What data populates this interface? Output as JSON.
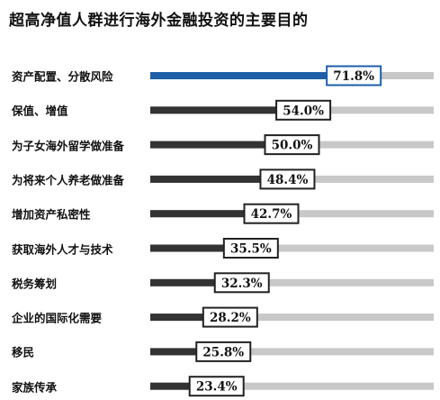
{
  "title": "超高净值人群进行海外金融投资的主要目的",
  "colors": {
    "highlight_bar": "#1f5fa8",
    "bar": "#333333",
    "track": "#c8c8c8",
    "label_border": "#222222",
    "highlight_border": "#1f5fa8"
  },
  "chart_data": {
    "type": "bar",
    "orientation": "horizontal",
    "title": "超高净值人群进行海外金融投资的主要目的",
    "categories": [
      "资产配置、分散风险",
      "保值、增值",
      "为子女海外留学做准备",
      "为将来个人养老做准备",
      "增加资产私密性",
      "获取海外人才与技术",
      "税务筹划",
      "企业的国际化需要",
      "移民",
      "家族传承"
    ],
    "values": [
      71.8,
      54.0,
      50.0,
      48.4,
      42.7,
      35.5,
      32.3,
      28.2,
      25.8,
      23.4
    ],
    "value_labels": [
      "71.8%",
      "54.0%",
      "50.0%",
      "48.4%",
      "42.7%",
      "35.5%",
      "32.3%",
      "28.2%",
      "25.8%",
      "23.4%"
    ],
    "highlight_index": 0,
    "xlim": [
      0,
      100
    ],
    "grid": false,
    "legend": "none"
  }
}
